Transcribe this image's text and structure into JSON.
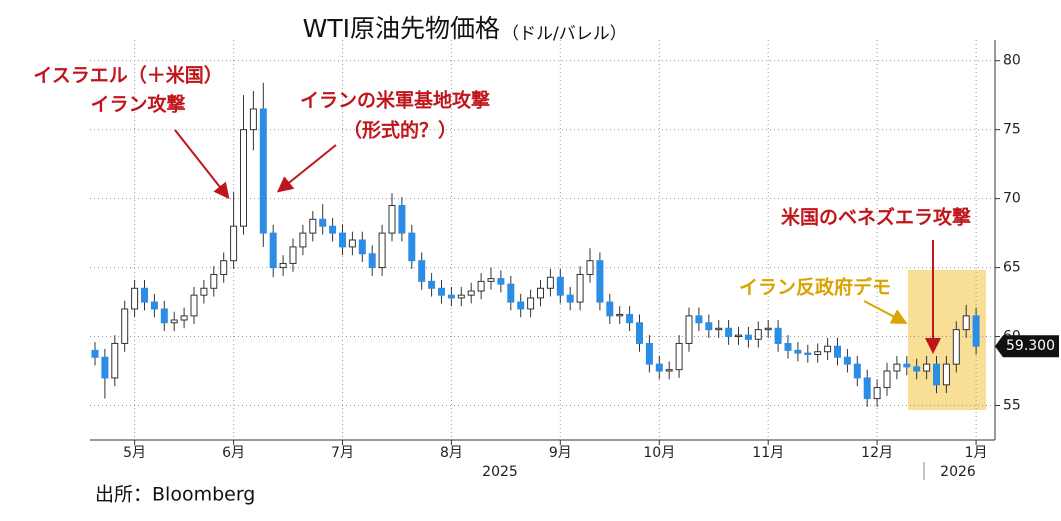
{
  "chart_data": {
    "type": "candlestick",
    "title": "WTI原油先物価格",
    "subtitle": "（ドル/バレル）",
    "source": "出所：Bloomberg",
    "categories": [
      null,
      null,
      null,
      null,
      null,
      null,
      null,
      null,
      null,
      null,
      null,
      null,
      null,
      null,
      null,
      null,
      null,
      null,
      null,
      null,
      null,
      null,
      null,
      null,
      null,
      null,
      null,
      null,
      null,
      null,
      null,
      null,
      null,
      null,
      null,
      null,
      null,
      null,
      null,
      null,
      null,
      null,
      null,
      null,
      null,
      null,
      null,
      null,
      null,
      null,
      null,
      null,
      null,
      null,
      null,
      null,
      null,
      null,
      null,
      null,
      null,
      null,
      null,
      null,
      null,
      null,
      null,
      null,
      null,
      null,
      null,
      null,
      null,
      null,
      null,
      null,
      null,
      null,
      null,
      null,
      null,
      null,
      null,
      null,
      null,
      null,
      null,
      null,
      null,
      null
    ],
    "open": [
      59.0,
      58.5,
      57.0,
      59.5,
      62.0,
      63.5,
      62.5,
      62.0,
      61.0,
      61.2,
      61.5,
      63.0,
      63.5,
      64.5,
      65.5,
      68.0,
      75.0,
      76.5,
      67.5,
      65.0,
      65.3,
      66.5,
      67.5,
      68.5,
      68.0,
      67.5,
      66.5,
      67.0,
      66.0,
      65.0,
      67.5,
      69.5,
      67.5,
      65.5,
      64.0,
      63.5,
      63.0,
      62.8,
      63.0,
      63.3,
      64.0,
      64.2,
      63.8,
      62.5,
      62.0,
      62.8,
      63.5,
      64.3,
      63.0,
      62.5,
      64.5,
      65.5,
      62.5,
      61.5,
      61.6,
      61.0,
      59.5,
      58.0,
      57.5,
      57.6,
      59.5,
      61.5,
      61.0,
      60.5,
      60.6,
      60.0,
      60.1,
      59.8,
      60.5,
      60.6,
      59.5,
      59.0,
      58.8,
      58.7,
      58.9,
      59.3,
      58.5,
      58.0,
      57.0,
      55.5,
      56.3,
      57.5,
      58.0,
      57.8,
      57.5,
      58.0,
      56.5,
      58.0,
      60.5,
      61.5
    ],
    "high": [
      59.6,
      59.1,
      60.1,
      62.6,
      64.1,
      64.1,
      63.1,
      62.6,
      61.8,
      62.1,
      63.6,
      64.1,
      65.1,
      66.1,
      70.5,
      77.5,
      77.8,
      78.4,
      68.1,
      65.9,
      67.1,
      68.1,
      69.1,
      69.6,
      68.6,
      68.1,
      67.6,
      67.6,
      66.6,
      68.1,
      70.4,
      70.1,
      68.1,
      66.1,
      64.6,
      64.1,
      63.6,
      63.6,
      63.9,
      64.6,
      65.0,
      64.8,
      64.4,
      63.1,
      63.4,
      64.1,
      64.9,
      64.9,
      63.6,
      65.1,
      66.4,
      66.1,
      63.1,
      62.2,
      62.2,
      61.6,
      60.1,
      58.6,
      58.2,
      60.1,
      62.1,
      62.1,
      61.6,
      61.2,
      61.2,
      60.7,
      60.7,
      61.1,
      61.2,
      61.2,
      60.1,
      59.6,
      59.4,
      59.5,
      59.9,
      59.9,
      59.1,
      58.6,
      57.6,
      56.9,
      58.1,
      58.6,
      58.6,
      58.4,
      58.6,
      58.6,
      58.6,
      61.1,
      62.3,
      62.1
    ],
    "low": [
      57.9,
      55.5,
      56.4,
      58.9,
      61.4,
      61.9,
      61.4,
      60.4,
      60.4,
      60.6,
      60.9,
      62.4,
      62.9,
      63.9,
      64.9,
      67.4,
      73.5,
      66.5,
      64.3,
      64.4,
      64.7,
      65.9,
      66.9,
      67.4,
      66.9,
      65.9,
      65.9,
      65.4,
      64.4,
      64.4,
      66.9,
      66.9,
      64.9,
      63.4,
      62.9,
      62.4,
      62.2,
      62.2,
      62.4,
      62.7,
      63.4,
      63.2,
      61.9,
      61.4,
      61.4,
      62.2,
      62.9,
      62.4,
      61.9,
      61.9,
      63.9,
      61.9,
      60.9,
      60.9,
      60.4,
      58.9,
      57.4,
      56.9,
      56.9,
      57.0,
      58.9,
      60.4,
      59.9,
      59.9,
      59.4,
      59.4,
      59.2,
      59.2,
      59.9,
      58.9,
      58.4,
      58.2,
      58.1,
      58.1,
      58.3,
      57.9,
      57.4,
      56.4,
      54.9,
      54.9,
      55.7,
      56.9,
      57.2,
      56.9,
      56.9,
      55.9,
      55.9,
      57.4,
      59.9,
      58.7
    ],
    "close": [
      58.5,
      57.0,
      59.5,
      62.0,
      63.5,
      62.5,
      62.0,
      61.0,
      61.2,
      61.5,
      63.0,
      63.5,
      64.5,
      65.5,
      68.0,
      75.0,
      76.5,
      67.5,
      65.0,
      65.3,
      66.5,
      67.5,
      68.5,
      68.0,
      67.5,
      66.5,
      67.0,
      66.0,
      65.0,
      67.5,
      69.5,
      67.5,
      65.5,
      64.0,
      63.5,
      63.0,
      62.8,
      63.0,
      63.3,
      64.0,
      64.2,
      63.8,
      62.5,
      62.0,
      62.8,
      63.5,
      64.3,
      63.0,
      62.5,
      64.5,
      65.5,
      62.5,
      61.5,
      61.6,
      61.0,
      59.5,
      58.0,
      57.5,
      57.6,
      59.5,
      61.5,
      61.0,
      60.5,
      60.6,
      60.0,
      60.1,
      59.8,
      60.5,
      60.6,
      59.5,
      59.0,
      58.8,
      58.7,
      58.9,
      59.3,
      58.5,
      58.0,
      57.0,
      55.5,
      56.3,
      57.5,
      58.0,
      57.8,
      57.5,
      58.0,
      56.5,
      58.0,
      60.5,
      61.5,
      59.3
    ],
    "up_color": "#ffffff",
    "down_color": "#2b8de6",
    "last_price": {
      "value": 59.3,
      "label": "59.300"
    },
    "ylim": [
      52.5,
      81.5
    ],
    "yticks": [
      55,
      60,
      65,
      70,
      75,
      80
    ],
    "xticks": [
      {
        "value": 4,
        "label": "5月"
      },
      {
        "value": 14,
        "label": "6月"
      },
      {
        "value": 25,
        "label": "7月"
      },
      {
        "value": 36,
        "label": "8月"
      },
      {
        "value": 47,
        "label": "9月"
      },
      {
        "value": 57,
        "label": "10月"
      },
      {
        "value": 68,
        "label": "11月"
      },
      {
        "value": 79,
        "label": "12月"
      },
      {
        "value": 89,
        "label": "1月"
      }
    ],
    "years": [
      "2025",
      "2026"
    ],
    "grid": true,
    "annotations": [
      "イスラエル（＋米国）",
      "イラン攻撃",
      "イランの米軍基地攻撃",
      "（形式的？）",
      "米国のベネズエラ攻撃",
      "イラン反政府デモ"
    ]
  }
}
